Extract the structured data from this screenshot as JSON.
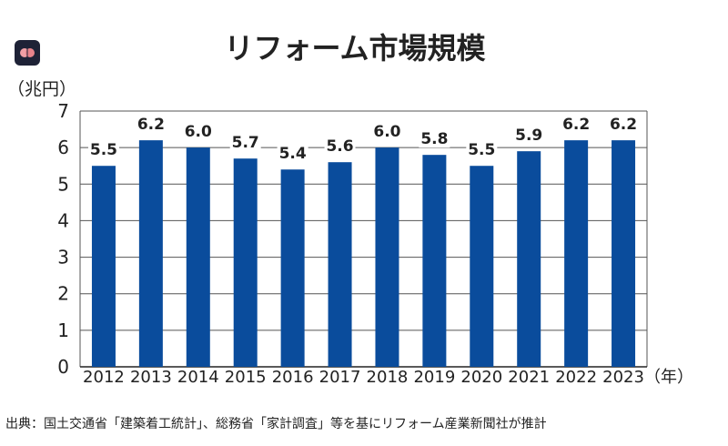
{
  "chart_data": {
    "type": "bar",
    "title": "リフォーム市場規模",
    "ylabel": "（兆円）",
    "xlabel_suffix": "（年）",
    "categories": [
      "2012",
      "2013",
      "2014",
      "2015",
      "2016",
      "2017",
      "2018",
      "2019",
      "2020",
      "2021",
      "2022",
      "2023"
    ],
    "values": [
      5.5,
      6.2,
      6.0,
      5.7,
      5.4,
      5.6,
      6.0,
      5.8,
      5.5,
      5.9,
      6.2,
      6.2
    ],
    "data_labels": [
      "5.5",
      "6.2",
      "6.0",
      "5.7",
      "5.4",
      "5.6",
      "6.0",
      "5.8",
      "5.5",
      "5.9",
      "6.2",
      "6.2"
    ],
    "yticks": [
      "0",
      "1",
      "2",
      "3",
      "4",
      "5",
      "6",
      "7"
    ],
    "ylim": [
      0,
      7
    ],
    "grid": true,
    "bar_color": "#0a4c9c",
    "grid_color": "#555555"
  },
  "source": "出典：国土交通省「建築着工統計」、総務省「家計調査」等を基にリフォーム産業新聞社が推計",
  "icon": {
    "name": "brain-icon",
    "background": "#1e2236"
  }
}
